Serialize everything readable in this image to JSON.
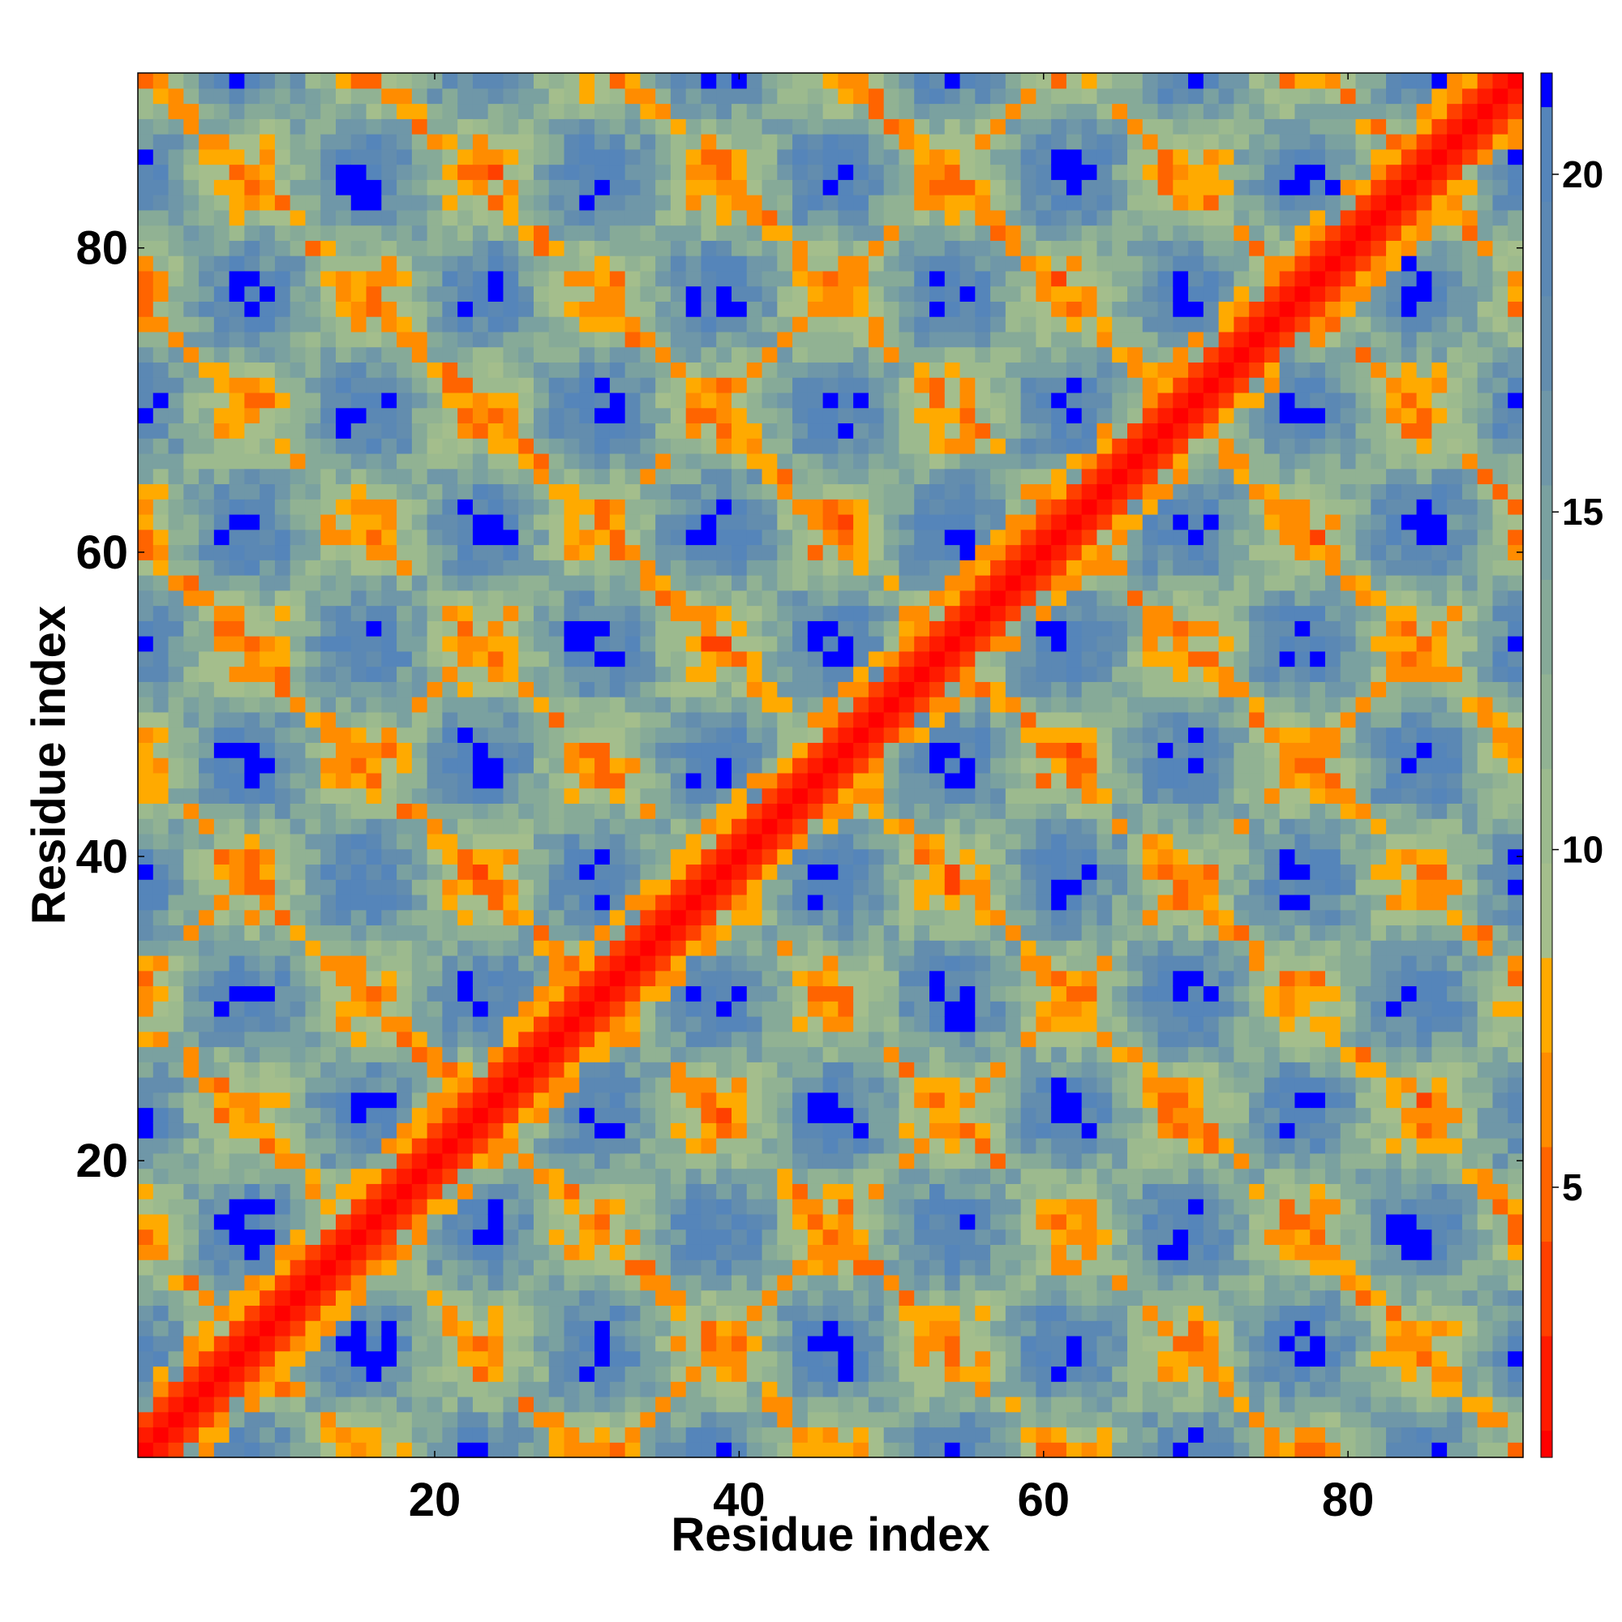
{
  "chart_data": {
    "type": "heatmap",
    "title": "",
    "xlabel": "Residue index",
    "ylabel": "Residue index",
    "n_residues": 91,
    "xlim": [
      0.5,
      91.5
    ],
    "ylim": [
      0.5,
      91.5
    ],
    "x_ticks": [
      20,
      40,
      60,
      80
    ],
    "y_ticks": [
      20,
      40,
      60,
      80
    ],
    "colorbar": {
      "ticks": [
        5,
        10,
        15,
        20
      ],
      "range": [
        1,
        21.5
      ],
      "bins": [
        {
          "max": 1.4,
          "color": "#ff0000"
        },
        {
          "max": 2.8,
          "color": "#ff1a00"
        },
        {
          "max": 4.2,
          "color": "#ff4000"
        },
        {
          "max": 5.6,
          "color": "#ff6400"
        },
        {
          "max": 7.0,
          "color": "#ff8c00"
        },
        {
          "max": 8.4,
          "color": "#ffaa00"
        },
        {
          "max": 9.8,
          "color": "#a4be8c"
        },
        {
          "max": 11.2,
          "color": "#9cba8e"
        },
        {
          "max": 12.6,
          "color": "#91b293"
        },
        {
          "max": 14.0,
          "color": "#86aa98"
        },
        {
          "max": 15.4,
          "color": "#7aa1a0"
        },
        {
          "max": 16.8,
          "color": "#6f97a8"
        },
        {
          "max": 18.2,
          "color": "#638dae"
        },
        {
          "max": 19.6,
          "color": "#5b88b4"
        },
        {
          "max": 21.0,
          "color": "#5585ba"
        },
        {
          "max": 99,
          "color": "#0000ff"
        }
      ]
    },
    "matrix_description": "Symmetric residue-residue distance map (Å); diagonal ~1, off-diagonal values up to >21",
    "structure": {
      "helix_period": 15.4,
      "strands_parallel_offset": 31,
      "contact_threshold": 8.4
    }
  }
}
